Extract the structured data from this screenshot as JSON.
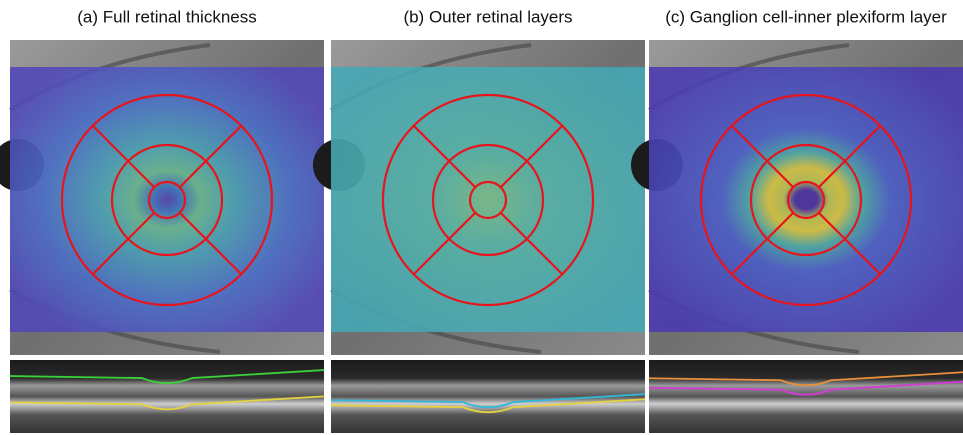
{
  "panels": [
    {
      "title": "(a) Full retinal thickness"
    },
    {
      "title": "(b) Outer retinal layers"
    },
    {
      "title": "(c) Ganglion cell-inner plexiform layer"
    }
  ]
}
